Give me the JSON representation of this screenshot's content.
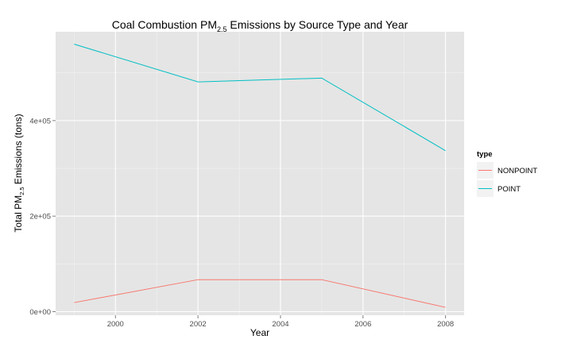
{
  "chart_data": {
    "type": "line",
    "title": {
      "prefix": "Coal Combustion PM",
      "subscript": "2.5",
      "suffix": " Emissions by Source Type and Year"
    },
    "xlabel": "Year",
    "ylabel": {
      "prefix": "Total PM",
      "subscript": "2.5",
      "suffix": " Emissions (tons)"
    },
    "x": [
      1999,
      2002,
      2005,
      2008
    ],
    "xlim": [
      1998.55,
      2008.45
    ],
    "ylim": [
      -7500,
      586000
    ],
    "x_ticks": [
      2000,
      2002,
      2004,
      2006,
      2008
    ],
    "x_minor_ticks": [
      1999,
      2001,
      2003,
      2005,
      2007
    ],
    "x_tick_labels": [
      "2000",
      "2002",
      "2004",
      "2006",
      "2008"
    ],
    "y_ticks": [
      0,
      200000,
      400000
    ],
    "y_minor_ticks": [
      100000,
      300000,
      500000
    ],
    "y_tick_labels": [
      "0e+00",
      "2e+05",
      "4e+05"
    ],
    "grid": true,
    "legend": {
      "title": "type",
      "position": "right"
    },
    "series": [
      {
        "name": "NONPOINT",
        "color": "#F8766D",
        "values": [
          19000,
          67000,
          67000,
          9000
        ]
      },
      {
        "name": "POINT",
        "color": "#00BFC4",
        "values": [
          560000,
          481000,
          489000,
          337000
        ]
      }
    ]
  }
}
